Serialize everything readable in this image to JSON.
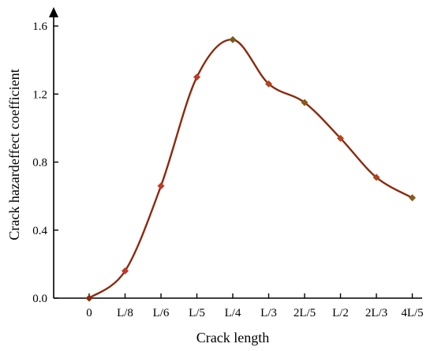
{
  "chart_data": {
    "type": "line",
    "title": "",
    "xlabel": "Crack length",
    "ylabel": "Crack hazardeffect coefficient",
    "categories": [
      "0",
      "L/8",
      "L/6",
      "L/5",
      "L/4",
      "L/3",
      "2L/5",
      "L/2",
      "2L/3",
      "4L/5"
    ],
    "x": [
      0,
      0.125,
      0.1667,
      0.2,
      0.25,
      0.3333,
      0.4,
      0.5,
      0.6667,
      0.8
    ],
    "x_note_hidden": null,
    "ylim": [
      0,
      1.6
    ],
    "yticks": [
      "0.0",
      "0.4",
      "0.8",
      "1.2",
      "1.6"
    ],
    "ytick_values": [
      0,
      0.4,
      0.8,
      1.2,
      1.6
    ],
    "grid": false,
    "legend": "none",
    "series": [
      {
        "values": [
          0.0,
          0.16,
          0.66,
          1.3,
          1.52,
          1.26,
          1.15,
          0.94,
          0.71,
          0.59
        ],
        "line_color": "#8B2A0E",
        "marker_colors": [
          "#8B2A0E",
          "#C0392B",
          "#C0392B",
          "#C0392B",
          "#7A5A1A",
          "#B5431E",
          "#8A5A1A",
          "#B5431E",
          "#B5431E",
          "#8A5A1A"
        ]
      }
    ]
  }
}
